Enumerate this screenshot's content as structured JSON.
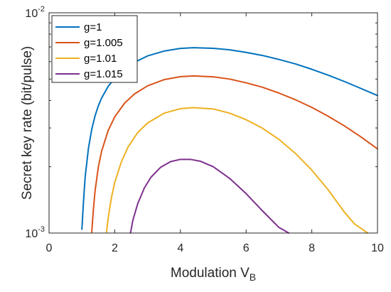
{
  "chart_data": {
    "type": "line",
    "title": "",
    "xlabel": "Modulation V",
    "xlabel_subscript": "B",
    "ylabel": "Secret key rate (bit/pulse)",
    "xlim": [
      0,
      10
    ],
    "ylim": [
      0.001,
      0.01
    ],
    "yscale": "log",
    "grid": false,
    "legend_position": "top-left",
    "x_ticks": [
      0,
      2,
      4,
      6,
      8,
      10
    ],
    "x_tick_labels": [
      "0",
      "2",
      "4",
      "6",
      "8",
      "10"
    ],
    "y_tick_labels": [
      {
        "value": 0.001,
        "base": "10",
        "exp": "-3"
      },
      {
        "value": 0.01,
        "base": "10",
        "exp": "-2"
      }
    ],
    "series": [
      {
        "name": "g=1",
        "color": "#0072BD",
        "x": [
          1.0,
          1.05,
          1.1,
          1.2,
          1.3,
          1.4,
          1.5,
          1.6,
          1.8,
          2.0,
          2.3,
          2.6,
          3.0,
          3.5,
          4.0,
          4.4,
          5.0,
          5.5,
          6.0,
          6.5,
          7.0,
          7.5,
          8.0,
          8.5,
          9.0,
          9.5,
          10.0
        ],
        "y": [
          0.00104,
          0.0014,
          0.0018,
          0.00243,
          0.00296,
          0.0034,
          0.00378,
          0.0041,
          0.00463,
          0.00505,
          0.00555,
          0.00596,
          0.00637,
          0.0067,
          0.00689,
          0.00694,
          0.0069,
          0.00679,
          0.00661,
          0.0064,
          0.00614,
          0.00586,
          0.00554,
          0.00521,
          0.00487,
          0.00453,
          0.00421
        ]
      },
      {
        "name": "g=1.005",
        "color": "#D95319",
        "x": [
          1.3,
          1.35,
          1.4,
          1.5,
          1.6,
          1.8,
          2.0,
          2.3,
          2.6,
          3.0,
          3.5,
          4.0,
          4.4,
          5.0,
          5.5,
          6.0,
          6.5,
          7.0,
          7.5,
          8.0,
          8.5,
          9.0,
          9.5,
          10.0
        ],
        "y": [
          0.00101,
          0.00128,
          0.00155,
          0.00199,
          0.00235,
          0.00292,
          0.00337,
          0.00389,
          0.00428,
          0.00466,
          0.00497,
          0.00513,
          0.00517,
          0.00512,
          0.005,
          0.00481,
          0.00459,
          0.00432,
          0.00403,
          0.00372,
          0.00339,
          0.00306,
          0.00273,
          0.00241
        ]
      },
      {
        "name": "g=1.01",
        "color": "#EDB120",
        "x": [
          1.75,
          1.8,
          1.9,
          2.0,
          2.2,
          2.4,
          2.7,
          3.0,
          3.5,
          4.0,
          4.4,
          5.0,
          5.5,
          6.0,
          6.5,
          7.0,
          7.5,
          8.0,
          8.5,
          9.0,
          9.3,
          9.5,
          9.7
        ],
        "y": [
          0.00101,
          0.00117,
          0.00145,
          0.0017,
          0.0021,
          0.00245,
          0.00286,
          0.00316,
          0.0035,
          0.00367,
          0.00371,
          0.00366,
          0.0035,
          0.00327,
          0.00299,
          0.00266,
          0.0023,
          0.00193,
          0.00157,
          0.00124,
          0.0011,
          0.00105,
          0.001
        ]
      },
      {
        "name": "g=1.015",
        "color": "#7E2F8E",
        "x": [
          2.48,
          2.55,
          2.7,
          2.9,
          3.1,
          3.4,
          3.7,
          4.0,
          4.3,
          4.6,
          5.0,
          5.5,
          6.0,
          6.5,
          7.0,
          7.3
        ],
        "y": [
          0.001,
          0.00114,
          0.00136,
          0.0016,
          0.00179,
          0.00199,
          0.00211,
          0.00216,
          0.00216,
          0.00212,
          0.002,
          0.00177,
          0.00151,
          0.00126,
          0.00106,
          0.001
        ]
      }
    ]
  }
}
